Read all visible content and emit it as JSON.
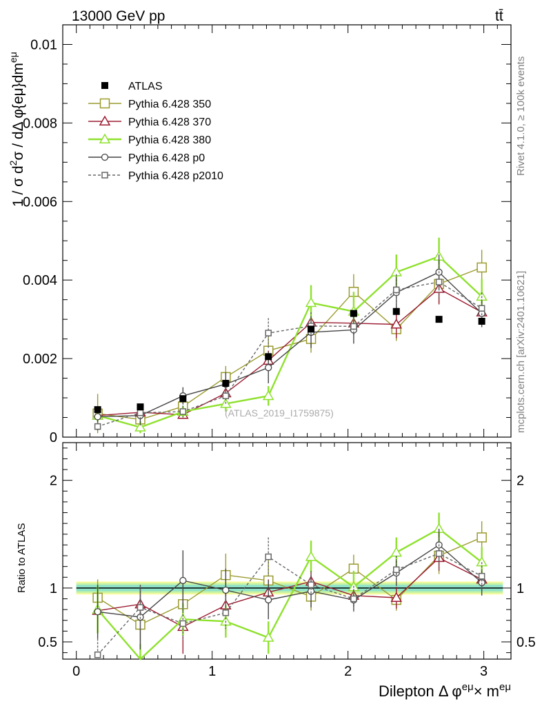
{
  "header": {
    "left_title": "13000 GeV pp",
    "right_title": "tt̄"
  },
  "side_labels": {
    "rivet": "Rivet 4.1.0, ≥ 100k events",
    "mcplots": "mcplots.cern.ch [arXiv:2401.10621]"
  },
  "watermark": "(ATLAS_2019_I1759875)",
  "chart_data": [
    {
      "type": "line",
      "panel": "main",
      "title": "13000 GeV pp",
      "xlabel": "Dilepton Δ φ^{eμ} × m^{eμ}",
      "ylabel": "1 / σ  d²σ / dΔ φ{eμ}dm^{eμ}",
      "xlim": [
        -0.1,
        3.2
      ],
      "ylim": [
        0,
        0.0105
      ],
      "yticks": [
        0,
        0.002,
        0.004,
        0.006,
        0.008,
        0.01
      ],
      "ytick_labels": [
        "0",
        "0.002",
        "0.004",
        "0.006",
        "0.008",
        "0.01"
      ],
      "x": [
        0.157,
        0.471,
        0.785,
        1.1,
        1.414,
        1.728,
        2.042,
        2.356,
        2.67,
        2.985
      ],
      "series": [
        {
          "name": "ATLAS",
          "style": "data",
          "color": "#000000",
          "values": [
            0.0007,
            0.00077,
            0.00098,
            0.00137,
            0.00205,
            0.00275,
            0.00315,
            0.0032,
            0.003,
            0.00295
          ]
        },
        {
          "name": "Pythia 6.428 350",
          "style": "square-open",
          "color": "#9a9a2e",
          "values": [
            0.0006,
            0.00045,
            0.00078,
            0.00153,
            0.0022,
            0.0025,
            0.0037,
            0.00275,
            0.0039,
            0.00432
          ],
          "errors": [
            0.0005,
            0.0002,
            0.0003,
            0.00028,
            0.00045,
            0.00035,
            0.00045,
            0.0003,
            0.0005,
            0.00045
          ]
        },
        {
          "name": "Pythia 6.428 370",
          "style": "triangle-open",
          "color": "#9b1b30",
          "values": [
            0.00055,
            0.00063,
            0.00057,
            0.00112,
            0.00195,
            0.00292,
            0.0029,
            0.00287,
            0.00378,
            0.00318
          ],
          "errors": [
            0.0001,
            0.0001,
            0.0001,
            0.00015,
            0.00025,
            0.0003,
            0.0003,
            0.00035,
            0.0004,
            0.0003
          ]
        },
        {
          "name": "Pythia 6.428 380",
          "style": "triangle-open",
          "color": "#8ee12c",
          "values": [
            0.00055,
            0.00025,
            0.00065,
            0.00085,
            0.00105,
            0.00342,
            0.0032,
            0.0042,
            0.0046,
            0.00358
          ],
          "errors": [
            0.00015,
            0.00015,
            0.00015,
            0.0002,
            0.00025,
            0.00045,
            0.0005,
            0.00045,
            0.00048,
            0.00045
          ]
        },
        {
          "name": "Pythia 6.428 p0",
          "style": "circle-open",
          "color": "#444444",
          "values": [
            0.00052,
            0.00055,
            0.00105,
            0.00135,
            0.00177,
            0.00267,
            0.00273,
            0.00368,
            0.0042,
            0.00315
          ],
          "errors": [
            0.00015,
            0.00025,
            0.00022,
            0.0003,
            0.0004,
            0.0004,
            0.00035,
            0.0004,
            0.00045,
            0.00035
          ]
        },
        {
          "name": "Pythia 6.428 p2010",
          "style": "square-open-dashed",
          "color": "#666666",
          "values": [
            0.00027,
            0.00062,
            0.00065,
            0.00105,
            0.00265,
            0.00283,
            0.00282,
            0.00375,
            0.00395,
            0.00328
          ],
          "errors": [
            0.0001,
            0.00015,
            0.00015,
            0.0002,
            0.00038,
            0.00035,
            0.0004,
            0.0004,
            0.00045,
            0.0004
          ]
        }
      ],
      "legend_position": "top-left"
    },
    {
      "type": "line",
      "panel": "ratio",
      "ylabel": "Ratio to ATLAS",
      "xlabel": "Dilepton Δ φ^{eμ} × m^{eμ}",
      "xlim": [
        -0.1,
        3.2
      ],
      "ylim": [
        0.34,
        2.35
      ],
      "yticks": [
        0.5,
        1,
        2
      ],
      "ytick_labels": [
        "0.5",
        "1",
        "2"
      ],
      "xticks": [
        0,
        1,
        2,
        3
      ],
      "xtick_labels": [
        "0",
        "1",
        "2",
        "3"
      ],
      "x": [
        0.157,
        0.471,
        0.785,
        1.1,
        1.414,
        1.728,
        2.042,
        2.356,
        2.67,
        2.985
      ],
      "reference": 1,
      "band_inner": 0.03,
      "band_outer": 0.06,
      "series": [
        {
          "name": "Pythia 6.428 350",
          "style": "square-open",
          "color": "#9a9a2e",
          "values": [
            0.91,
            0.66,
            0.85,
            1.12,
            1.07,
            0.92,
            1.18,
            0.89,
            1.3,
            1.47
          ],
          "errors": [
            0.17,
            0.2,
            0.25,
            0.2,
            0.22,
            0.13,
            0.13,
            0.1,
            0.17,
            0.15
          ]
        },
        {
          "name": "Pythia 6.428 370",
          "style": "triangle-open",
          "color": "#9b1b30",
          "values": [
            0.79,
            0.85,
            0.64,
            0.84,
            0.96,
            1.06,
            0.93,
            0.91,
            1.28,
            1.08
          ],
          "errors": [
            0.2,
            0.15,
            0.25,
            0.12,
            0.12,
            0.1,
            0.1,
            0.1,
            0.12,
            0.1
          ]
        },
        {
          "name": "Pythia 6.428 380",
          "style": "triangle-open",
          "color": "#8ee12c",
          "values": [
            0.8,
            0.28,
            0.71,
            0.69,
            0.54,
            1.29,
            1.01,
            1.33,
            1.55,
            1.24
          ],
          "errors": [
            0.22,
            0.2,
            0.15,
            0.15,
            0.15,
            0.15,
            0.15,
            0.14,
            0.15,
            0.14
          ]
        },
        {
          "name": "Pythia 6.428 p0",
          "style": "circle-open",
          "color": "#444444",
          "values": [
            0.78,
            0.73,
            1.07,
            0.98,
            0.89,
            0.97,
            0.89,
            1.14,
            1.4,
            1.05
          ],
          "errors": [
            0.25,
            0.3,
            0.28,
            0.2,
            0.18,
            0.15,
            0.1,
            0.12,
            0.15,
            0.12
          ]
        },
        {
          "name": "Pythia 6.428 p2010",
          "style": "square-open-dashed",
          "color": "#666666",
          "values": [
            0.38,
            0.82,
            0.67,
            0.77,
            1.29,
            1.03,
            0.9,
            1.17,
            1.32,
            1.11
          ],
          "errors": [
            0.15,
            0.2,
            0.15,
            0.15,
            0.18,
            0.13,
            0.12,
            0.13,
            0.15,
            0.13
          ]
        }
      ]
    }
  ]
}
